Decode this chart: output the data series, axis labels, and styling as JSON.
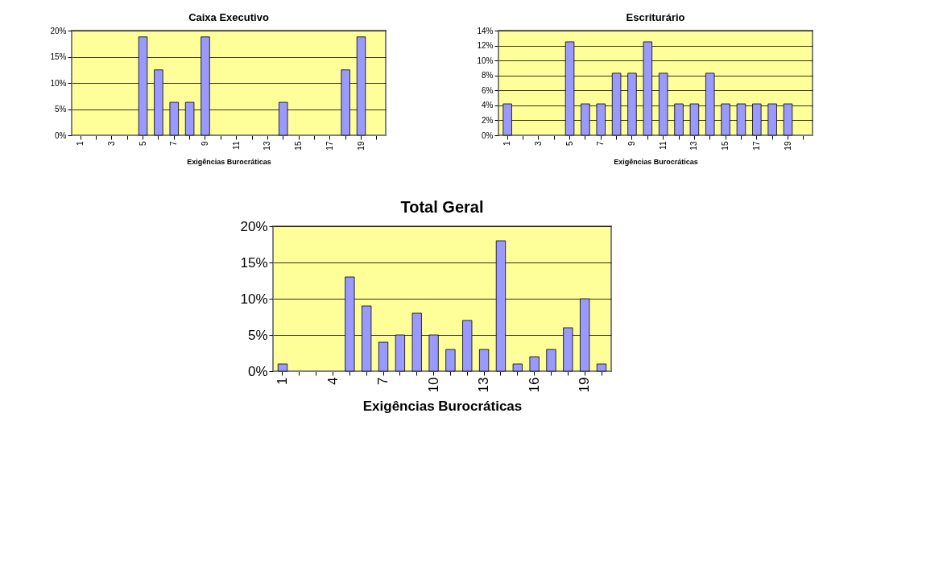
{
  "chart_data": [
    {
      "type": "bar",
      "title": "Caixa Executivo",
      "xlabel": "Exigências Burocráticas",
      "categories": [
        "1",
        null,
        "3",
        null,
        "5",
        null,
        "7",
        null,
        "9",
        null,
        "11",
        null,
        "13",
        null,
        "15",
        null,
        "17",
        null,
        "19",
        null
      ],
      "values": [
        0,
        0,
        0,
        0,
        18.8,
        12.5,
        6.3,
        6.3,
        18.8,
        0,
        0,
        0,
        0,
        6.3,
        0,
        0,
        0,
        12.5,
        18.8,
        0
      ],
      "color": "#9999ff",
      "ylim": [
        0,
        20
      ],
      "yticks": [
        {
          "value": 0,
          "label": "0%"
        },
        {
          "value": 5,
          "label": "5%"
        },
        {
          "value": 10,
          "label": "10%"
        },
        {
          "value": 15,
          "label": "15%"
        },
        {
          "value": 20,
          "label": "20%"
        }
      ],
      "grid": "y"
    },
    {
      "type": "bar",
      "title": "Escriturário",
      "xlabel": "Exigências Burocráticas",
      "categories": [
        "1",
        null,
        "3",
        null,
        "5",
        null,
        "7",
        null,
        "9",
        null,
        "11",
        null,
        "13",
        null,
        "15",
        null,
        "17",
        null,
        "19",
        null
      ],
      "values": [
        4.2,
        0,
        0,
        0,
        12.5,
        4.2,
        4.2,
        8.3,
        8.3,
        12.5,
        8.3,
        4.2,
        4.2,
        8.3,
        4.2,
        4.2,
        4.2,
        4.2,
        4.2,
        0
      ],
      "color": "#9999ff",
      "ylim": [
        0,
        14
      ],
      "yticks": [
        {
          "value": 0,
          "label": "0%"
        },
        {
          "value": 2,
          "label": "2%"
        },
        {
          "value": 4,
          "label": "4%"
        },
        {
          "value": 6,
          "label": "6%"
        },
        {
          "value": 8,
          "label": "8%"
        },
        {
          "value": 10,
          "label": "10%"
        },
        {
          "value": 12,
          "label": "12%"
        },
        {
          "value": 14,
          "label": "14%"
        }
      ],
      "grid": "y"
    },
    {
      "type": "bar",
      "title": "Total Geral",
      "xlabel": "Exigências Burocráticas",
      "categories": [
        "1",
        null,
        null,
        "4",
        null,
        null,
        "7",
        null,
        null,
        "10",
        null,
        null,
        "13",
        null,
        null,
        "16",
        null,
        null,
        "19",
        null
      ],
      "values": [
        1,
        0,
        0,
        0,
        13,
        9,
        4,
        5,
        8,
        5,
        3,
        7,
        3,
        18,
        1,
        2,
        3,
        6,
        10,
        1
      ],
      "color": "#9999ff",
      "ylim": [
        0,
        20
      ],
      "yticks": [
        {
          "value": 0,
          "label": "0%"
        },
        {
          "value": 5,
          "label": "5%"
        },
        {
          "value": 10,
          "label": "10%"
        },
        {
          "value": 15,
          "label": "15%"
        },
        {
          "value": 20,
          "label": "20%"
        }
      ],
      "grid": "y"
    }
  ]
}
